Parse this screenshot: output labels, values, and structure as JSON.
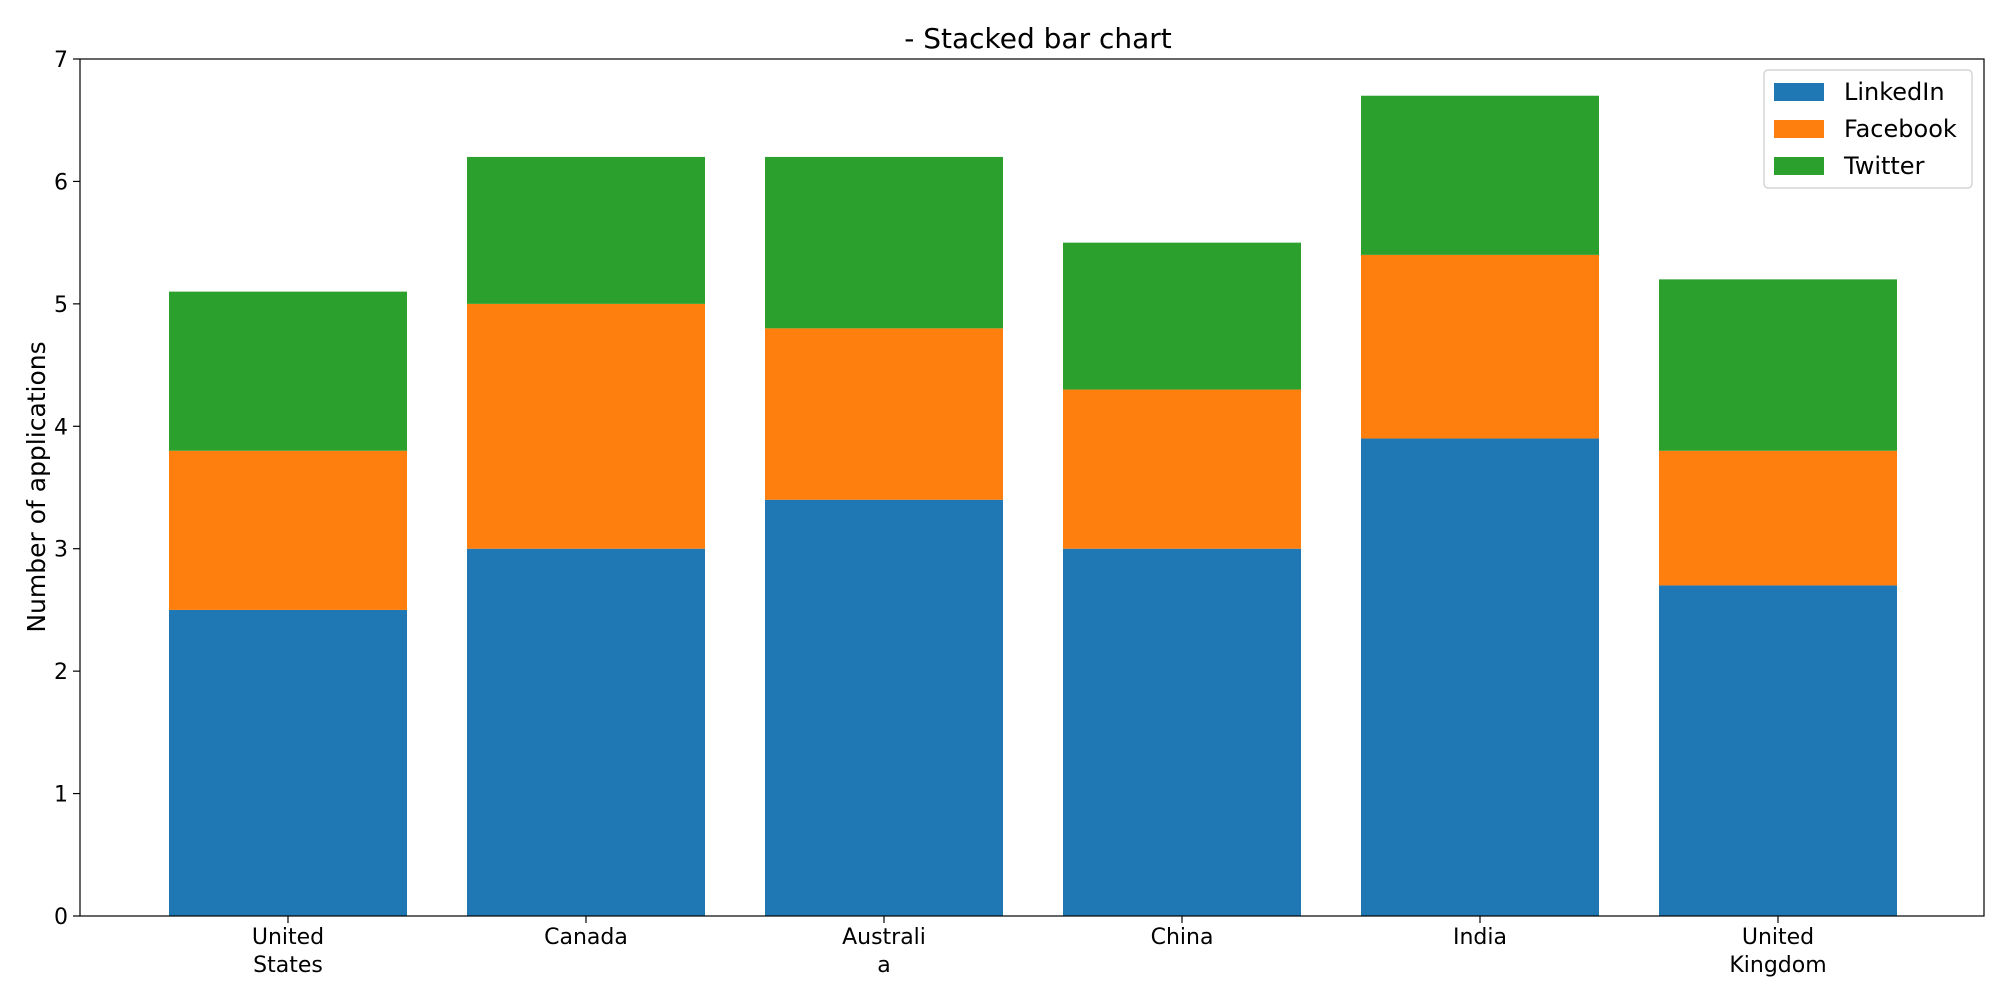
{
  "chart_data": {
    "type": "bar",
    "stacked": true,
    "title": "- Stacked bar chart",
    "xlabel": "",
    "ylabel": "Number of applications",
    "categories": [
      [
        "United",
        "States"
      ],
      [
        "Canada"
      ],
      [
        "Australi",
        "a"
      ],
      [
        "China"
      ],
      [
        "India"
      ],
      [
        "United",
        "Kingdom"
      ]
    ],
    "series": [
      {
        "name": "LinkedIn",
        "color": "#1f77b4",
        "values": [
          2.5,
          3.0,
          3.4,
          3.0,
          3.9,
          2.7
        ]
      },
      {
        "name": "Facebook",
        "color": "#ff7f0e",
        "values": [
          1.3,
          2.0,
          1.4,
          1.3,
          1.5,
          1.1
        ]
      },
      {
        "name": "Twitter",
        "color": "#2ca02c",
        "values": [
          1.3,
          1.2,
          1.4,
          1.2,
          1.3,
          1.4
        ]
      }
    ],
    "ylim": [
      0,
      7
    ],
    "yticks": [
      "0",
      "1",
      "2",
      "3",
      "4",
      "5",
      "6",
      "7"
    ],
    "legend": "top-right",
    "grid": false
  }
}
